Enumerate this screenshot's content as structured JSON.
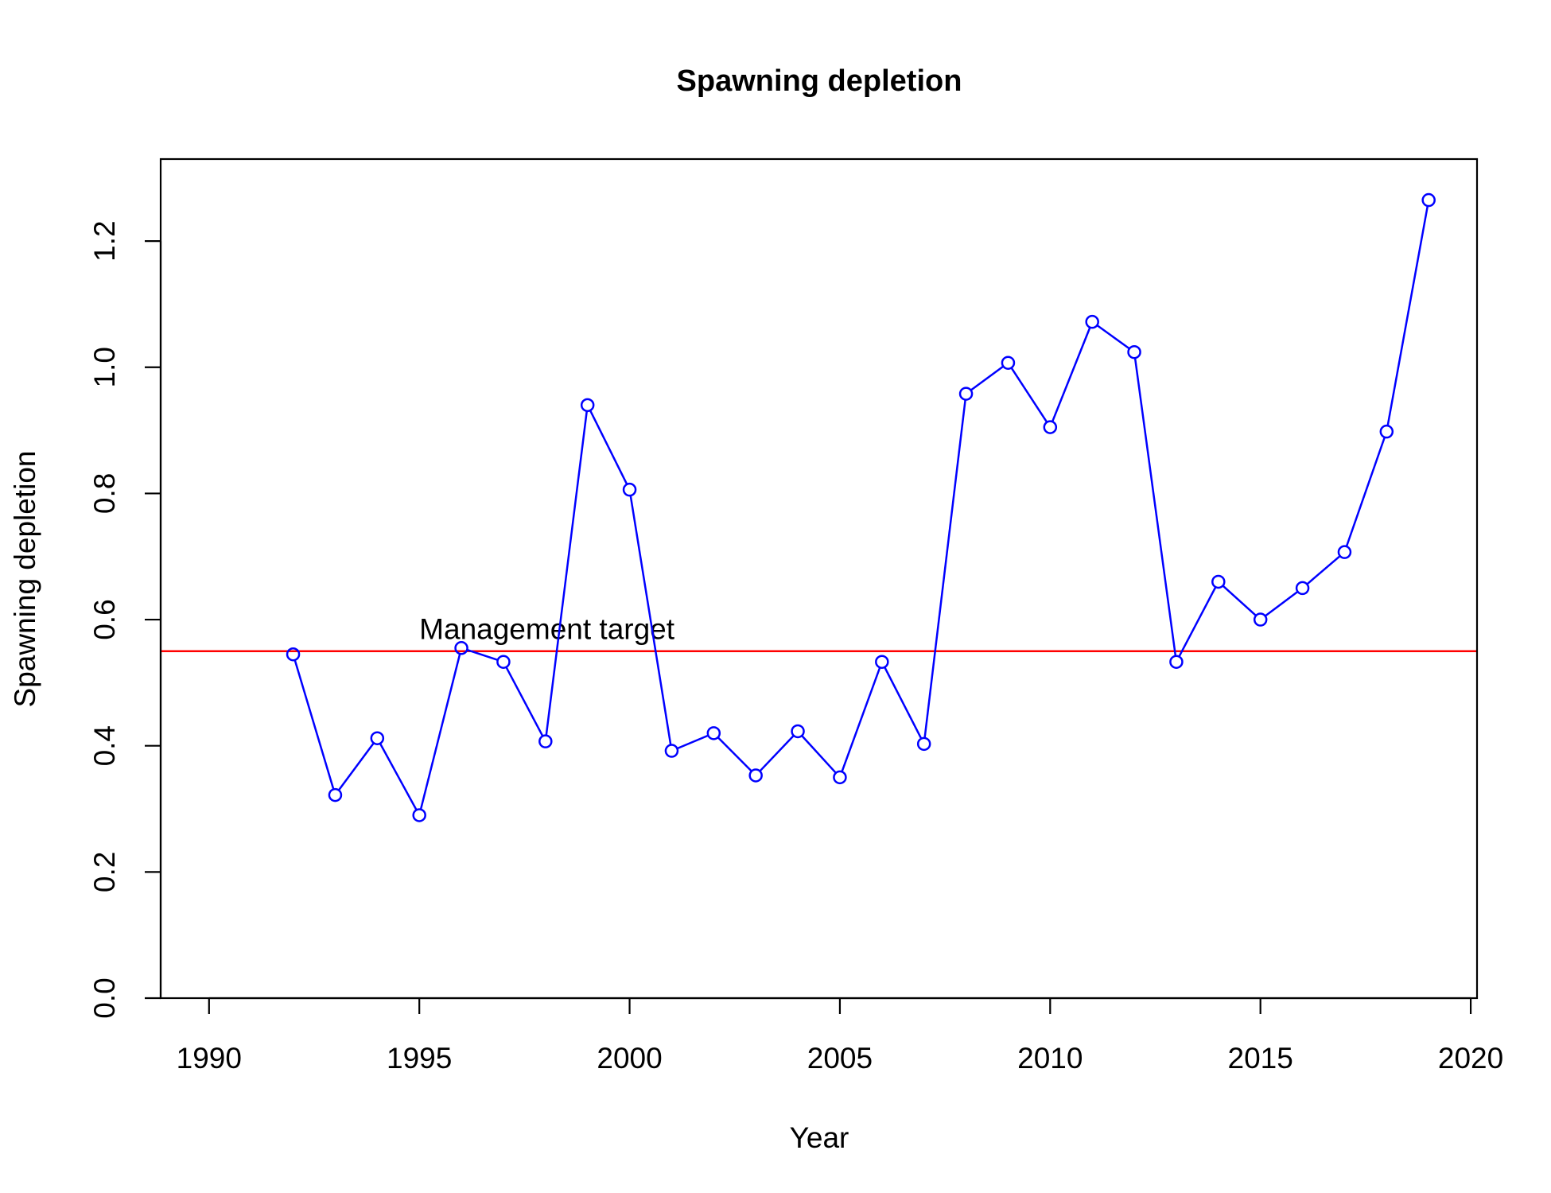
{
  "chart_data": {
    "type": "line",
    "title": "Spawning depletion",
    "xlabel": "Year",
    "ylabel": "Spawning depletion",
    "xlim": [
      1988.85,
      2020.15
    ],
    "ylim": [
      0.0,
      1.33
    ],
    "xticks": [
      1990,
      1995,
      2000,
      2005,
      2010,
      2015,
      2020
    ],
    "yticks": [
      0.0,
      0.2,
      0.4,
      0.6,
      0.8,
      1.0,
      1.2
    ],
    "xtick_labels": [
      "1990",
      "1995",
      "2000",
      "2005",
      "2010",
      "2015",
      "2020"
    ],
    "ytick_labels": [
      "0.0",
      "0.2",
      "0.4",
      "0.6",
      "0.8",
      "1.0",
      "1.2"
    ],
    "grid": false,
    "series": [
      {
        "color": "#0000ff",
        "marker": "open-circle",
        "x": [
          1992,
          1993,
          1994,
          1995,
          1996,
          1997,
          1998,
          1999,
          2000,
          2001,
          2002,
          2003,
          2004,
          2005,
          2006,
          2007,
          2008,
          2009,
          2010,
          2011,
          2012,
          2013,
          2014,
          2015,
          2016,
          2017,
          2018,
          2019
        ],
        "values": [
          0.545,
          0.322,
          0.412,
          0.29,
          0.555,
          0.533,
          0.407,
          0.94,
          0.806,
          0.392,
          0.42,
          0.353,
          0.423,
          0.35,
          0.533,
          0.403,
          0.958,
          1.007,
          0.905,
          1.072,
          1.024,
          0.533,
          0.66,
          0.6,
          0.65,
          0.707,
          0.898,
          1.265
        ]
      }
    ],
    "reference_line": {
      "y": 0.55,
      "color": "#ff0000",
      "label": "Management target",
      "label_x": 1995
    }
  }
}
